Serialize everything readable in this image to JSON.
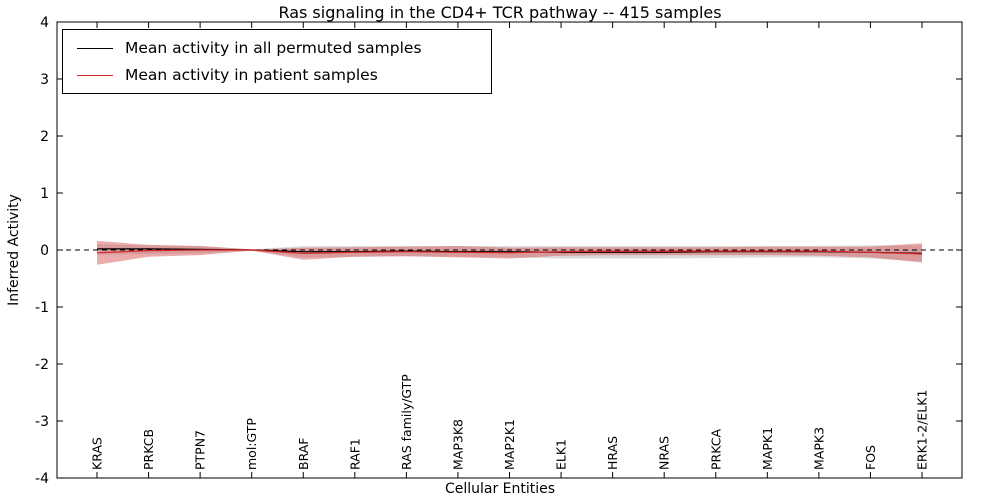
{
  "figure": {
    "title": "Ras signaling in the CD4+ TCR pathway -- 415 samples",
    "xlabel": "Cellular Entities",
    "ylabel": "Inferred Activity"
  },
  "chart_data": {
    "type": "line",
    "title": "Ras signaling in the CD4+ TCR pathway -- 415 samples",
    "xlabel": "Cellular Entities",
    "ylabel": "Inferred Activity",
    "ylim": [
      -4,
      4
    ],
    "yticks": [
      -4,
      -3,
      -2,
      -1,
      0,
      1,
      2,
      3,
      4
    ],
    "grid": false,
    "legend_position": "upper left",
    "categories": [
      "KRAS",
      "PRKCB",
      "PTPN7",
      "mol:GTP",
      "BRAF",
      "RAF1",
      "RAS family/GTP",
      "MAP3K8",
      "MAP2K1",
      "ELK1",
      "HRAS",
      "NRAS",
      "PRKCA",
      "MAPK1",
      "MAPK3",
      "FOS",
      "ERK1-2/ELK1"
    ],
    "series": [
      {
        "name": "Mean activity in all permuted samples",
        "color": "#000000",
        "style": "solid",
        "values": [
          0.02,
          0.02,
          0.01,
          0.0,
          -0.03,
          -0.03,
          -0.02,
          -0.03,
          -0.03,
          -0.04,
          -0.04,
          -0.04,
          -0.03,
          -0.03,
          -0.03,
          -0.04,
          -0.06
        ]
      },
      {
        "name": "Mean activity in patient samples",
        "color": "#d62728",
        "style": "solid",
        "values": [
          -0.05,
          -0.01,
          0.0,
          0.0,
          -0.06,
          -0.04,
          -0.03,
          -0.04,
          -0.05,
          -0.03,
          -0.02,
          -0.02,
          -0.02,
          -0.02,
          -0.02,
          -0.04,
          -0.07
        ]
      }
    ],
    "bands": [
      {
        "name": "permuted-samples-range",
        "color": "#bdbdbd",
        "opacity": 0.55,
        "upper": [
          0.1,
          0.08,
          0.07,
          0.01,
          0.07,
          0.07,
          0.07,
          0.07,
          0.07,
          0.07,
          0.07,
          0.07,
          0.07,
          0.07,
          0.07,
          0.08,
          0.08
        ],
        "lower": [
          -0.08,
          -0.07,
          -0.06,
          -0.01,
          -0.13,
          -0.12,
          -0.11,
          -0.12,
          -0.13,
          -0.15,
          -0.15,
          -0.15,
          -0.14,
          -0.13,
          -0.13,
          -0.15,
          -0.2
        ]
      },
      {
        "name": "patient-samples-range",
        "color": "#d65a5a",
        "opacity": 0.5,
        "upper": [
          0.16,
          0.09,
          0.07,
          0.01,
          0.04,
          0.05,
          0.06,
          0.07,
          0.04,
          0.05,
          0.05,
          0.05,
          0.05,
          0.06,
          0.06,
          0.06,
          0.12
        ],
        "lower": [
          -0.26,
          -0.12,
          -0.09,
          -0.01,
          -0.17,
          -0.12,
          -0.11,
          -0.13,
          -0.15,
          -0.1,
          -0.09,
          -0.09,
          -0.09,
          -0.09,
          -0.1,
          -0.13,
          -0.22
        ]
      }
    ],
    "zero_line": {
      "style": "dashed",
      "color": "#000000",
      "y": 0
    }
  }
}
